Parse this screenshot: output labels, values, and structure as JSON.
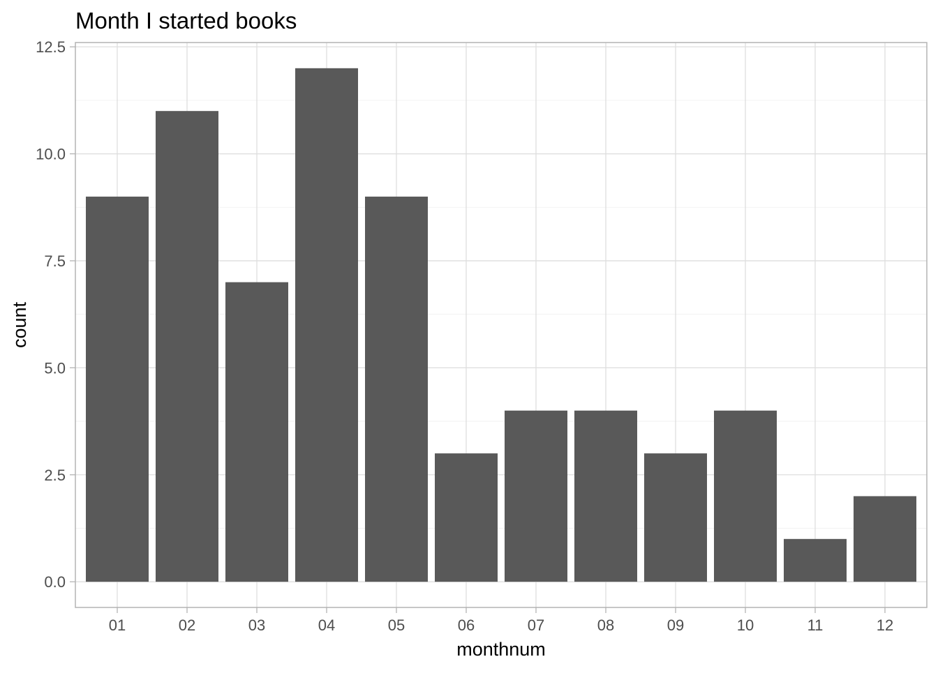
{
  "chart_data": {
    "type": "bar",
    "title": "Month I started books",
    "xlabel": "monthnum",
    "ylabel": "count",
    "categories": [
      "01",
      "02",
      "03",
      "04",
      "05",
      "06",
      "07",
      "08",
      "09",
      "10",
      "11",
      "12"
    ],
    "values": [
      9,
      11,
      7,
      12,
      9,
      3,
      4,
      4,
      3,
      4,
      1,
      2
    ],
    "ylim": [
      -0.6,
      12.6
    ],
    "yticks": [
      0,
      2.5,
      5,
      7.5,
      10,
      12.5
    ],
    "ytick_labels": [
      "0.0",
      "2.5",
      "5.0",
      "7.5",
      "10.0",
      "12.5"
    ],
    "grid": true,
    "legend": "none",
    "colors": {
      "bar": "#595959",
      "grid": "#dedede",
      "border": "#b3b3b3"
    }
  }
}
